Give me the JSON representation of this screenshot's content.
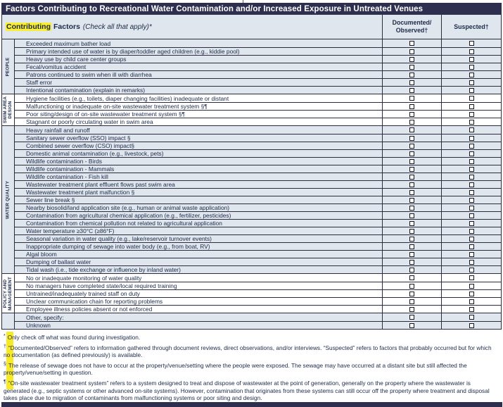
{
  "title": "Factors Contributing to Recreational Water Contamination and/or Increased Exposure in Untreated Venues",
  "header": {
    "word_highlight": "Contributing",
    "word_rest": "Factors",
    "note": "(Check all that apply)*",
    "col_documented": "Documented/\nObserved†",
    "col_suspected": "Suspected†"
  },
  "colors": {
    "navy_bar": "#2e2f4f",
    "row_blue": "#dfe6ed",
    "highlight_yellow": "#f9ee32",
    "text_navy": "#1c2a49"
  },
  "sections": [
    {
      "label": "PEOPLE",
      "shade": "blue",
      "rows": [
        {
          "factor": "Exceeded maximum bather load",
          "documented": false,
          "suspected": false
        },
        {
          "factor": "Primary intended use of water is by diaper/toddler aged children (e.g., kiddie pool)",
          "documented": false,
          "suspected": false
        },
        {
          "factor": "Heavy use by child care center groups",
          "documented": false,
          "suspected": false
        },
        {
          "factor": "Fecal/vomitus accident",
          "documented": false,
          "suspected": false
        },
        {
          "factor": "Patrons continued to swim when ill with diarrhea",
          "documented": false,
          "suspected": false
        },
        {
          "factor": "Staff error",
          "documented": false,
          "suspected": false
        },
        {
          "factor": "Intentional contamination (explain in remarks)",
          "documented": false,
          "suspected": false
        }
      ]
    },
    {
      "label": "SWIM AREA DESIGN",
      "shade": "white",
      "rows": [
        {
          "factor": "Hygiene facilities (e.g., toilets, diaper changing facilities) inadequate or distant",
          "documented": false,
          "suspected": false
        },
        {
          "factor": "Malfunctioning or inadequate on-site wastewater treatment system §¶",
          "documented": false,
          "suspected": false
        },
        {
          "factor": "Poor siting/design of on-site wastewater treatment system §¶",
          "documented": false,
          "suspected": false
        },
        {
          "factor": "Stagnant or poorly circulating water in swim area",
          "documented": false,
          "suspected": false
        }
      ]
    },
    {
      "label": "WATER QUALITY",
      "shade": "blue",
      "rows": [
        {
          "factor": "Heavy rainfall and runoff",
          "documented": false,
          "suspected": false
        },
        {
          "factor": "Sanitary sewer overflow (SSO) impact §",
          "documented": false,
          "suspected": false
        },
        {
          "factor": "Combined sewer overflow (CSO) impact§",
          "documented": false,
          "suspected": false
        },
        {
          "factor": "Domestic animal contamination (e.g., livestock, pets)",
          "documented": false,
          "suspected": false
        },
        {
          "factor": "Wildlife contamination - Birds",
          "documented": false,
          "suspected": false
        },
        {
          "factor": "Wildlife contamination - Mammals",
          "documented": false,
          "suspected": false
        },
        {
          "factor": "Wildlife contamination - Fish kill",
          "documented": false,
          "suspected": false
        },
        {
          "factor": "Wastewater treatment plant effluent flows past swim area",
          "documented": false,
          "suspected": false
        },
        {
          "factor": "Wastewater treatment plant malfunction §",
          "documented": false,
          "suspected": false
        },
        {
          "factor": "Sewer line break §",
          "documented": false,
          "suspected": false
        },
        {
          "factor": "Nearby biosolid/land application site (e.g., human or animal waste application)",
          "documented": false,
          "suspected": false
        },
        {
          "factor": "Contamination from agricultural chemical application (e.g., fertilizer, pesticides)",
          "documented": false,
          "suspected": false
        },
        {
          "factor": "Contamination from chemical pollution not related to agricultural application",
          "documented": false,
          "suspected": false
        },
        {
          "factor": "Water temperature ≥30°C (≥86°F)",
          "documented": false,
          "suspected": false
        },
        {
          "factor": "Seasonal variation in water quality (e.g., lake/reservoir turnover events)",
          "documented": false,
          "suspected": false
        },
        {
          "factor": "Inappropriate dumping of sewage into water body (e.g., from boat, RV)",
          "documented": false,
          "suspected": false
        },
        {
          "factor": "Algal bloom",
          "documented": false,
          "suspected": false
        },
        {
          "factor": "Dumping of ballast water",
          "documented": false,
          "suspected": false
        },
        {
          "factor": "Tidal wash (i.e., tide exchange or influence by inland water)",
          "documented": false,
          "suspected": false
        }
      ]
    },
    {
      "label": "POLICY AND MANAGEMENT",
      "shade": "white",
      "rows": [
        {
          "factor": "No or inadequate monitoring of water quality",
          "documented": false,
          "suspected": false
        },
        {
          "factor": "No managers have completed state/local required training",
          "documented": false,
          "suspected": false
        },
        {
          "factor": "Untrained/inadequately trained staff on duty",
          "documented": false,
          "suspected": false
        },
        {
          "factor": "Unclear communication chain for reporting problems",
          "documented": false,
          "suspected": false
        },
        {
          "factor": "Employee illness policies absent or not enforced",
          "documented": false,
          "suspected": false
        }
      ]
    },
    {
      "label": "",
      "shade": "blue",
      "rows": [
        {
          "factor": "Other, specify:",
          "documented": false,
          "suspected": false
        },
        {
          "factor": "Unknown",
          "documented": false,
          "suspected": false
        }
      ]
    }
  ],
  "footnotes": [
    {
      "symbol": "*",
      "text": "Only check off what was found during investigation."
    },
    {
      "symbol": "†",
      "text": "“Documented/Observed” refers to information gathered through document reviews, direct observations, and/or interviews. “Suspected” refers to factors that probably occurred but for which no documentation (as defined previously) is available."
    },
    {
      "symbol": "§",
      "text": "The release of sewage does not have to occur at the property/venue/setting where the people were exposed. The sewage may have occurred at a distant site but still affected the property/venue/setting in question."
    },
    {
      "symbol": "¶",
      "text": "“On-site wastewater treatment system” refers to a system designed to treat and dispose of wastewater at the point of generation, generally on the property where the wastewater is generated (e.g., septic systems or other advanced on-site systems). However, contamination that originates from these systems can still occur off the property where treatment and disposal takes place due to migration of contaminants from malfunctioning systems or poor siting and design."
    }
  ]
}
